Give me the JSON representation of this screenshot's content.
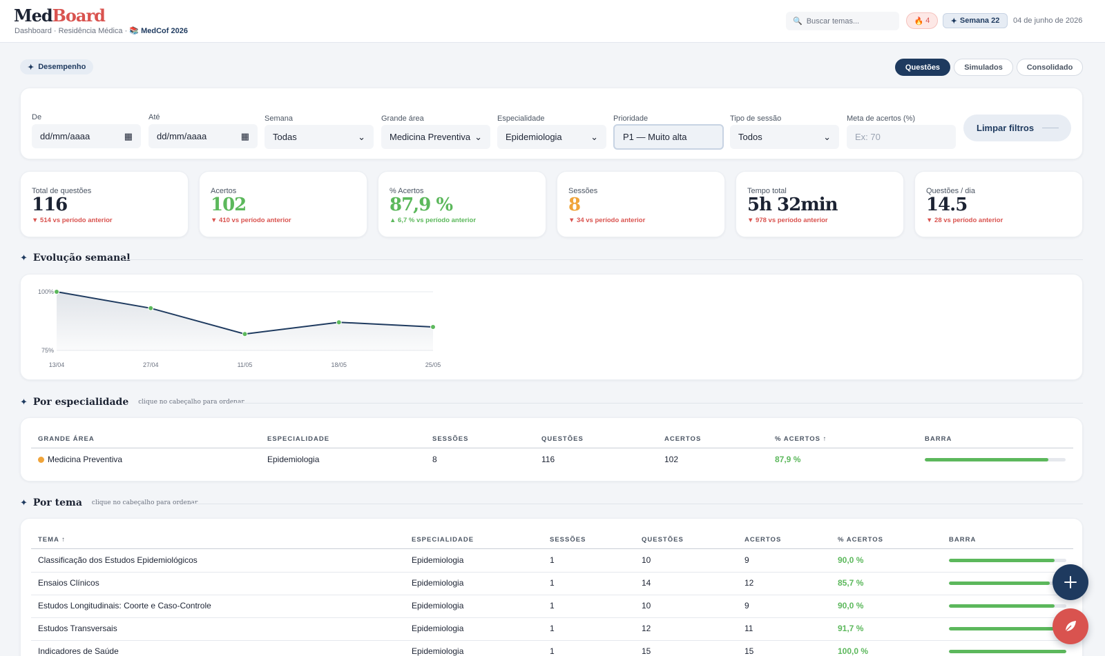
{
  "header": {
    "logo_a": "Med",
    "logo_b": "Board",
    "breadcrumb": "Dashboard · Residência Médica ·",
    "project_icon": "📚",
    "project": "MedCof 2026",
    "search_placeholder": "Buscar temas...",
    "streak_count": "4",
    "week_label": "Semana 22",
    "date": "04 de junho de 2026"
  },
  "nav": {
    "section_pill": "Desempenho",
    "tabs": [
      "Questões",
      "Simulados",
      "Consolidado"
    ],
    "active_tab": "Questões"
  },
  "filters": {
    "de": {
      "label": "De",
      "value": "dd/mm/aaaa"
    },
    "ate": {
      "label": "Até",
      "value": "dd/mm/aaaa"
    },
    "semana": {
      "label": "Semana",
      "value": "Todas"
    },
    "grande_area": {
      "label": "Grande área",
      "value": "Medicina Preventiva"
    },
    "especialidade": {
      "label": "Especialidade",
      "value": "Epidemiologia"
    },
    "prioridade": {
      "label": "Prioridade",
      "value": "P1 — Muito alta"
    },
    "tipo_sessao": {
      "label": "Tipo de sessão",
      "value": "Todos"
    },
    "meta": {
      "label": "Meta de acertos (%)",
      "placeholder": "Ex: 70"
    },
    "clear_label": "Limpar filtros"
  },
  "kpis": [
    {
      "label": "Total de questões",
      "value": "116",
      "delta": "▼ 514 vs período anterior",
      "color": "#1c2333",
      "trend": "down"
    },
    {
      "label": "Acertos",
      "value": "102",
      "delta": "▼ 410 vs período anterior",
      "color": "#5cb85c",
      "trend": "down"
    },
    {
      "label": "% Acertos",
      "value": "87,9 %",
      "delta": "▲ 6,7 % vs período anterior",
      "color": "#5cb85c",
      "trend": "up"
    },
    {
      "label": "Sessões",
      "value": "8",
      "delta": "▼ 34 vs período anterior",
      "color": "#f0a43a",
      "trend": "down"
    },
    {
      "label": "Tempo total",
      "value": "5h 32min",
      "delta": "▼ 978 vs período anterior",
      "color": "#1c2333",
      "trend": "down"
    },
    {
      "label": "Questões / dia",
      "value": "14.5",
      "delta": "▼ 28 vs período anterior",
      "color": "#1c2333",
      "trend": "down"
    }
  ],
  "sections": {
    "evolucao": "Evolução semanal",
    "especialidade": "Por especialidade",
    "especialidade_hint": "clique no cabeçalho para ordenar",
    "tema": "Por tema",
    "tema_hint": "clique no cabeçalho para ordenar"
  },
  "chart_data": {
    "type": "line",
    "x": [
      "13/04",
      "27/04",
      "11/05",
      "18/05",
      "25/05"
    ],
    "series": [
      {
        "values": [
          100,
          93,
          82,
          87,
          85
        ]
      }
    ],
    "ylim": [
      75,
      100
    ],
    "yticks": [
      "100%",
      "75%"
    ],
    "line_color": "#1e3a5f",
    "point_color": "#5cb85c",
    "grid": true
  },
  "spec_table": {
    "headers": [
      "Grande área",
      "Especialidade",
      "Sessões",
      "Questões",
      "Acertos",
      "% Acertos ↑",
      "Barra"
    ],
    "rows": [
      {
        "area": "Medicina Preventiva",
        "especialidade": "Epidemiologia",
        "sessoes": "8",
        "questoes": "116",
        "acertos": "102",
        "pct": "87,9 %",
        "bar": 0.879,
        "area_color": "#f0a43a"
      }
    ]
  },
  "tema_table": {
    "headers": [
      "Tema ↑",
      "Especialidade",
      "Sessões",
      "Questões",
      "Acertos",
      "% Acertos",
      "Barra"
    ],
    "rows": [
      {
        "tema": "Classificação dos Estudos Epidemiológicos",
        "especialidade": "Epidemiologia",
        "sessoes": "1",
        "questoes": "10",
        "acertos": "9",
        "pct": "90,0 %",
        "bar": 0.9
      },
      {
        "tema": "Ensaios Clínicos",
        "especialidade": "Epidemiologia",
        "sessoes": "1",
        "questoes": "14",
        "acertos": "12",
        "pct": "85,7 %",
        "bar": 0.857
      },
      {
        "tema": "Estudos Longitudinais: Coorte e Caso-Controle",
        "especialidade": "Epidemiologia",
        "sessoes": "1",
        "questoes": "10",
        "acertos": "9",
        "pct": "90,0 %",
        "bar": 0.9
      },
      {
        "tema": "Estudos Transversais",
        "especialidade": "Epidemiologia",
        "sessoes": "1",
        "questoes": "12",
        "acertos": "11",
        "pct": "91,7 %",
        "bar": 0.917
      },
      {
        "tema": "Indicadores de Saúde",
        "especialidade": "Epidemiologia",
        "sessoes": "1",
        "questoes": "15",
        "acertos": "15",
        "pct": "100,0 %",
        "bar": 1.0
      }
    ]
  },
  "fabs": {
    "add_icon": "plus-icon",
    "note_icon": "leaf-icon"
  }
}
